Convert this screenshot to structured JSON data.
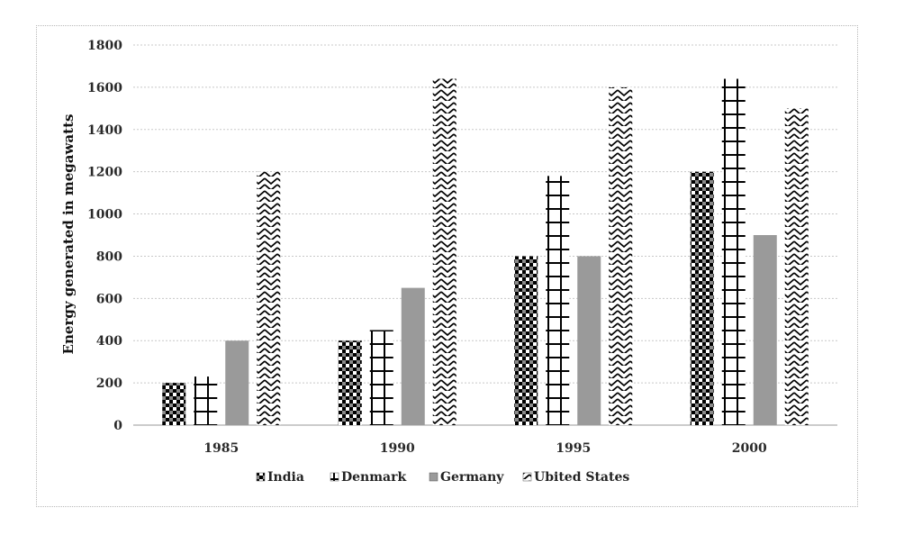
{
  "chart_data": {
    "type": "bar",
    "categories": [
      "1985",
      "1990",
      "1995",
      "2000"
    ],
    "series": [
      {
        "name": "India",
        "values": [
          200,
          400,
          800,
          1200
        ],
        "pattern": "checker"
      },
      {
        "name": "Denmark",
        "values": [
          230,
          450,
          1180,
          1640
        ],
        "pattern": "grid"
      },
      {
        "name": "Germany",
        "values": [
          400,
          650,
          800,
          900
        ],
        "pattern": "solid",
        "color": "#9a9a9a"
      },
      {
        "name": "Ubited States",
        "values": [
          1200,
          1640,
          1600,
          1500
        ],
        "pattern": "zigzag"
      }
    ],
    "ylabel": "Energy generated in megawatts",
    "ylim": [
      0,
      1800
    ],
    "yticks": [
      "0",
      "200",
      "400",
      "600",
      "800",
      "1000",
      "1200",
      "1400",
      "1600",
      "1800"
    ],
    "grid": true,
    "legend_position": "bottom"
  }
}
